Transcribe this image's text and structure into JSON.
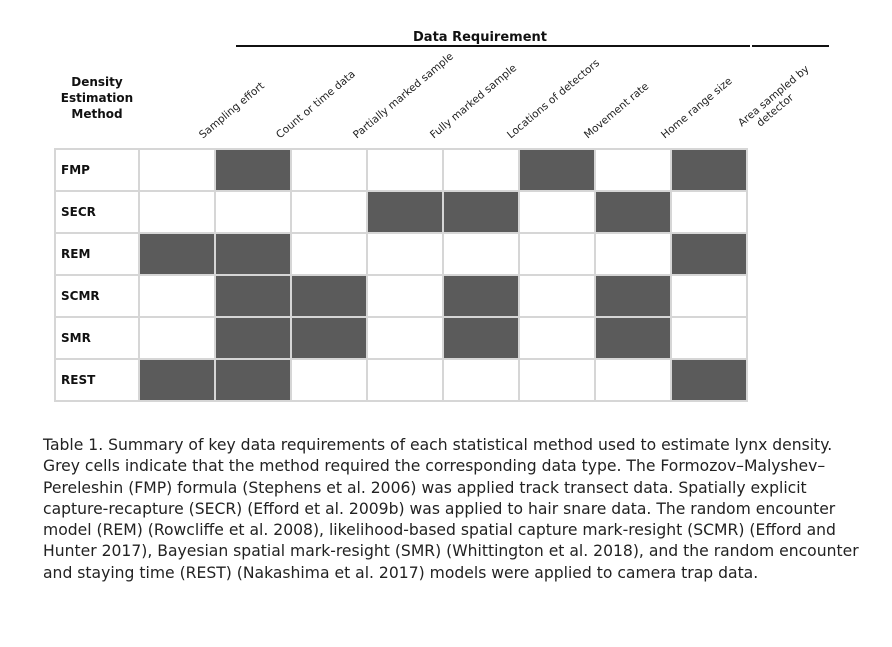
{
  "table": {
    "group_title": "Data Requirement",
    "row_header": [
      "Density",
      "Estimation",
      "Method"
    ],
    "columns": [
      [
        "Sampling effort"
      ],
      [
        "Count or time data"
      ],
      [
        "Partially marked sample"
      ],
      [
        "Fully marked sample"
      ],
      [
        "Locations of detectors"
      ],
      [
        "Movement rate"
      ],
      [
        "Home range size"
      ],
      [
        "Area sampled by",
        "detector"
      ]
    ],
    "rows": [
      {
        "method": "FMP",
        "cells": [
          0,
          1,
          0,
          0,
          0,
          1,
          0,
          1
        ]
      },
      {
        "method": "SECR",
        "cells": [
          0,
          0,
          0,
          1,
          1,
          0,
          1,
          0
        ]
      },
      {
        "method": "REM",
        "cells": [
          1,
          1,
          0,
          0,
          0,
          0,
          0,
          1
        ]
      },
      {
        "method": "SCMR",
        "cells": [
          0,
          1,
          1,
          0,
          1,
          0,
          1,
          0
        ]
      },
      {
        "method": "SMR",
        "cells": [
          0,
          1,
          1,
          0,
          1,
          0,
          1,
          0
        ]
      },
      {
        "method": "REST",
        "cells": [
          1,
          1,
          0,
          0,
          0,
          0,
          0,
          1
        ]
      }
    ],
    "fill_color": "#5b5b5b"
  },
  "caption": "Table 1.  Summary of key data requirements of each statistical method used to estimate lynx density. Grey cells indicate that the method required the corresponding data type. The Formozov–Malyshev–Pereleshin (FMP) formula (Stephens et al. 2006) was applied track transect data. Spatially explicit capture-recapture (SECR) (Efford et al. 2009b) was applied to hair snare data. The random encounter model (REM) (Rowcliffe et al. 2008), likelihood-based spatial capture mark-resight (SCMR) (Efford and Hunter 2017), Bayesian spatial mark-resight (SMR) (Whittington et al. 2018), and the random encounter and staying time (REST) (Nakashima et al. 2017) models were applied to camera trap data."
}
